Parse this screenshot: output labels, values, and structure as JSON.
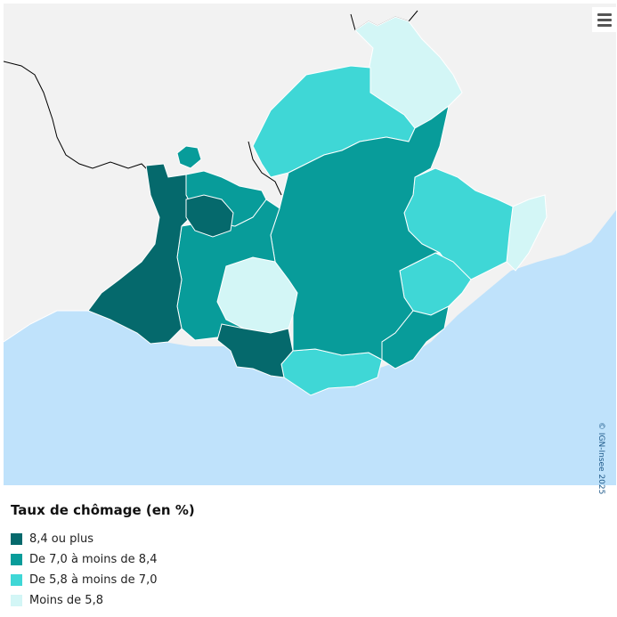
{
  "menu": {
    "icon": "hamburger-menu-icon"
  },
  "map": {
    "copyright": "© IGN-Insee 2025",
    "colors": {
      "sea": "#bfe2fb",
      "land_outside": "#f2f2f2",
      "border": "#ffffff",
      "country_border": "#000000"
    }
  },
  "legend": {
    "title": "Taux de chômage (en %)",
    "items": [
      {
        "label": "8,4 ou plus",
        "color": "#05696c"
      },
      {
        "label": "De 7,0 à moins de 8,4",
        "color": "#089c9a"
      },
      {
        "label": "De 5,8 à moins de 7,0",
        "color": "#3fd7d6"
      },
      {
        "label": "Moins de 5,8",
        "color": "#d3f6f6"
      }
    ]
  }
}
